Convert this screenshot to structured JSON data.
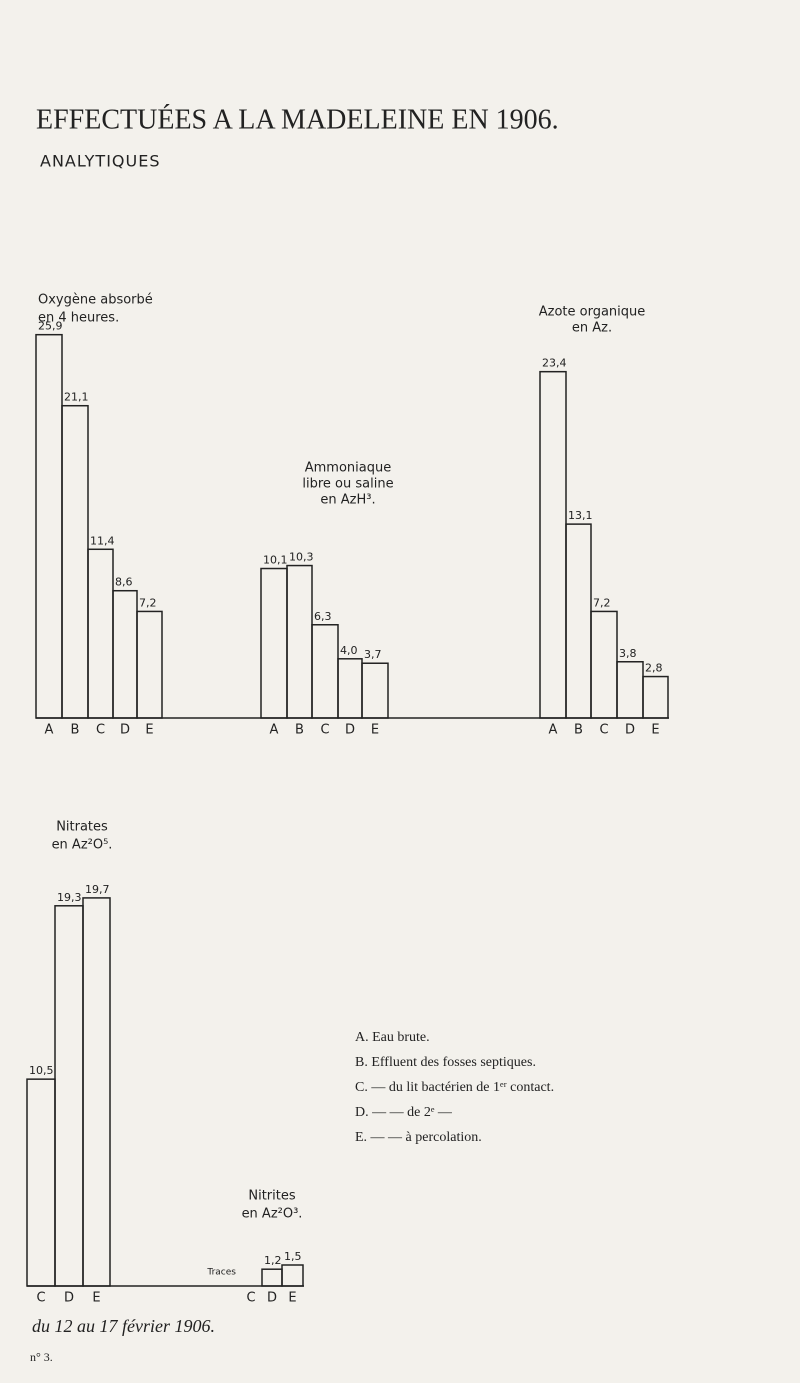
{
  "header": {
    "title": "EFFECTUÉES A LA MADELEINE EN 1906.",
    "subtitle": "ANALYTIQUES"
  },
  "chart_data": [
    {
      "type": "bar",
      "title": [
        "Oxygène absorbé",
        "en 4 heures."
      ],
      "categories": [
        "A",
        "B",
        "C",
        "D",
        "E"
      ],
      "values": [
        25.9,
        21.1,
        11.4,
        8.6,
        7.2
      ],
      "value_labels": [
        "25,9",
        "21,1",
        "11,4",
        "8,6",
        "7,2"
      ]
    },
    {
      "type": "bar",
      "title": [
        "Ammoniaque",
        "libre ou saline",
        "en AzH³."
      ],
      "categories": [
        "A",
        "B",
        "C",
        "D",
        "E"
      ],
      "values": [
        10.1,
        10.3,
        6.3,
        4.0,
        3.7
      ],
      "value_labels": [
        "10,1",
        "10,3",
        "6,3",
        "4,0",
        "3,7"
      ]
    },
    {
      "type": "bar",
      "title": [
        "Azote organique",
        "en Az."
      ],
      "categories": [
        "A",
        "B",
        "C",
        "D",
        "E"
      ],
      "values": [
        23.4,
        13.1,
        7.2,
        3.8,
        2.8
      ],
      "value_labels": [
        "23,4",
        "13,1",
        "7,2",
        "3,8",
        "2,8"
      ]
    },
    {
      "type": "bar",
      "title": [
        "Nitrates",
        "en Az²O⁵."
      ],
      "categories": [
        "C",
        "D",
        "E"
      ],
      "values": [
        10.5,
        19.3,
        19.7
      ],
      "value_labels": [
        "10,5",
        "19,3",
        "19,7"
      ]
    },
    {
      "type": "bar",
      "title": [
        "Nitrites",
        "en Az²O³."
      ],
      "categories": [
        "C",
        "D",
        "E"
      ],
      "values": [
        null,
        1.2,
        1.5
      ],
      "value_labels": [
        "Traces",
        "1,2",
        "1,5"
      ]
    }
  ],
  "legend": [
    "A. Eau brute.",
    "B. Effluent des fosses septiques.",
    "C. — du lit bactérien de 1ᵉʳ contact.",
    "D. — — de 2ᵉ —",
    "E. — — à percolation."
  ],
  "footer": {
    "date": "du 12 au 17 février 1906.",
    "number": "n° 3."
  }
}
